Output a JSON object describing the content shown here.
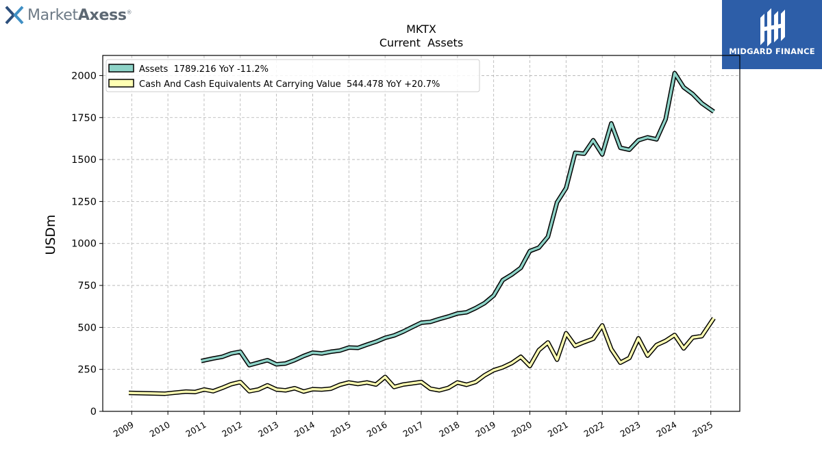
{
  "brand": {
    "name_light": "Market",
    "name_bold": "Axess",
    "mark": "®",
    "icon": "x-logo-icon"
  },
  "badge": {
    "text": "MIDGARD FINANCE",
    "color": "#2d5ea8"
  },
  "chart_data": {
    "type": "line",
    "title": "MKTX",
    "subtitle": "Current  Assets",
    "ylabel": "USDm",
    "xlabel": "",
    "xlim": [
      2008.2,
      2025.8
    ],
    "ylim": [
      0,
      2120
    ],
    "yticks": [
      0,
      250,
      500,
      750,
      1000,
      1250,
      1500,
      1750,
      2000
    ],
    "xticks": [
      2009,
      2010,
      2011,
      2012,
      2013,
      2014,
      2015,
      2016,
      2017,
      2018,
      2019,
      2020,
      2021,
      2022,
      2023,
      2024,
      2025
    ],
    "grid": true,
    "legend_position": "top-left",
    "series": [
      {
        "name": "Assets",
        "legend_label": "Assets  1789.216 YoY -11.2%",
        "color": "#8dd3c7",
        "points": [
          [
            2010.92,
            300
          ],
          [
            2011.25,
            315
          ],
          [
            2011.5,
            325
          ],
          [
            2011.75,
            345
          ],
          [
            2012.0,
            355
          ],
          [
            2012.25,
            275
          ],
          [
            2012.5,
            290
          ],
          [
            2012.75,
            305
          ],
          [
            2013.0,
            280
          ],
          [
            2013.25,
            285
          ],
          [
            2013.5,
            305
          ],
          [
            2013.75,
            330
          ],
          [
            2014.0,
            350
          ],
          [
            2014.25,
            345
          ],
          [
            2014.5,
            355
          ],
          [
            2014.75,
            362
          ],
          [
            2015.0,
            380
          ],
          [
            2015.25,
            378
          ],
          [
            2015.5,
            397
          ],
          [
            2015.75,
            415
          ],
          [
            2016.0,
            438
          ],
          [
            2016.25,
            452
          ],
          [
            2016.5,
            475
          ],
          [
            2016.75,
            502
          ],
          [
            2017.0,
            528
          ],
          [
            2017.25,
            533
          ],
          [
            2017.5,
            550
          ],
          [
            2017.75,
            565
          ],
          [
            2018.0,
            583
          ],
          [
            2018.25,
            590
          ],
          [
            2018.5,
            615
          ],
          [
            2018.75,
            645
          ],
          [
            2019.0,
            690
          ],
          [
            2019.25,
            782
          ],
          [
            2019.5,
            815
          ],
          [
            2019.75,
            855
          ],
          [
            2020.0,
            955
          ],
          [
            2020.25,
            975
          ],
          [
            2020.5,
            1040
          ],
          [
            2020.75,
            1245
          ],
          [
            2021.0,
            1330
          ],
          [
            2021.25,
            1540
          ],
          [
            2021.5,
            1535
          ],
          [
            2021.75,
            1615
          ],
          [
            2022.0,
            1530
          ],
          [
            2022.25,
            1715
          ],
          [
            2022.5,
            1570
          ],
          [
            2022.75,
            1558
          ],
          [
            2023.0,
            1615
          ],
          [
            2023.25,
            1632
          ],
          [
            2023.5,
            1620
          ],
          [
            2023.75,
            1740
          ],
          [
            2024.0,
            2015
          ],
          [
            2024.25,
            1930
          ],
          [
            2024.5,
            1890
          ],
          [
            2024.75,
            1835
          ],
          [
            2025.08,
            1785
          ]
        ]
      },
      {
        "name": "Cash And Cash Equivalents At Carrying Value",
        "legend_label": "Cash And Cash Equivalents At Carrying Value  544.478 YoY +20.7%",
        "color": "#ffffb3",
        "points": [
          [
            2008.92,
            110
          ],
          [
            2009.92,
            105
          ],
          [
            2010.5,
            118
          ],
          [
            2010.75,
            115
          ],
          [
            2011.0,
            130
          ],
          [
            2011.25,
            120
          ],
          [
            2011.5,
            140
          ],
          [
            2011.75,
            162
          ],
          [
            2012.0,
            175
          ],
          [
            2012.25,
            120
          ],
          [
            2012.5,
            130
          ],
          [
            2012.75,
            155
          ],
          [
            2013.0,
            130
          ],
          [
            2013.25,
            125
          ],
          [
            2013.5,
            138
          ],
          [
            2013.75,
            118
          ],
          [
            2014.0,
            132
          ],
          [
            2014.25,
            130
          ],
          [
            2014.5,
            135
          ],
          [
            2014.75,
            158
          ],
          [
            2015.0,
            172
          ],
          [
            2015.25,
            163
          ],
          [
            2015.5,
            172
          ],
          [
            2015.75,
            160
          ],
          [
            2016.0,
            205
          ],
          [
            2016.25,
            145
          ],
          [
            2016.5,
            160
          ],
          [
            2016.75,
            167
          ],
          [
            2017.0,
            175
          ],
          [
            2017.25,
            135
          ],
          [
            2017.5,
            125
          ],
          [
            2017.75,
            140
          ],
          [
            2018.0,
            172
          ],
          [
            2018.25,
            158
          ],
          [
            2018.5,
            175
          ],
          [
            2018.75,
            215
          ],
          [
            2019.0,
            245
          ],
          [
            2019.25,
            262
          ],
          [
            2019.5,
            288
          ],
          [
            2019.75,
            325
          ],
          [
            2020.0,
            270
          ],
          [
            2020.25,
            365
          ],
          [
            2020.5,
            410
          ],
          [
            2020.75,
            308
          ],
          [
            2021.0,
            465
          ],
          [
            2021.25,
            390
          ],
          [
            2021.5,
            412
          ],
          [
            2021.75,
            432
          ],
          [
            2022.0,
            512
          ],
          [
            2022.25,
            370
          ],
          [
            2022.5,
            290
          ],
          [
            2022.75,
            318
          ],
          [
            2023.0,
            435
          ],
          [
            2023.25,
            332
          ],
          [
            2023.5,
            395
          ],
          [
            2023.75,
            420
          ],
          [
            2024.0,
            455
          ],
          [
            2024.25,
            375
          ],
          [
            2024.5,
            440
          ],
          [
            2024.75,
            448
          ],
          [
            2025.08,
            555
          ]
        ]
      }
    ]
  }
}
